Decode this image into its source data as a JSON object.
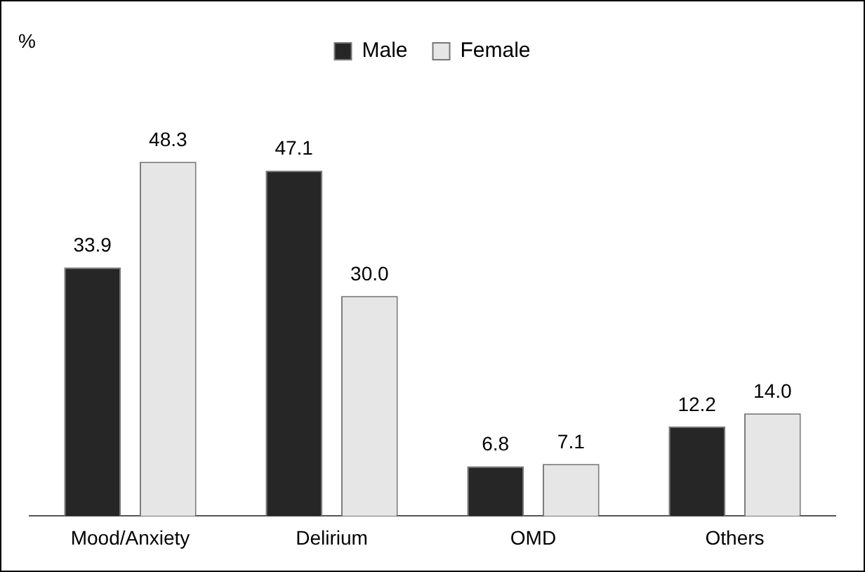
{
  "chart_data": {
    "type": "bar",
    "annotations": [
      "%"
    ],
    "categories": [
      "Mood/Anxiety",
      "Delirium",
      "OMD",
      "Others"
    ],
    "series": [
      {
        "name": "Male",
        "color": "#262626",
        "values": [
          33.9,
          47.1,
          6.8,
          12.2
        ],
        "value_labels": [
          "33.9",
          "47.1",
          "6.8",
          "12.2"
        ]
      },
      {
        "name": "Female",
        "color": "#e6e6e6",
        "values": [
          48.3,
          30.0,
          7.1,
          14.0
        ],
        "value_labels": [
          "48.3",
          "30.0",
          "7.1",
          "14.0"
        ]
      }
    ],
    "legend": "top",
    "grid": false
  }
}
